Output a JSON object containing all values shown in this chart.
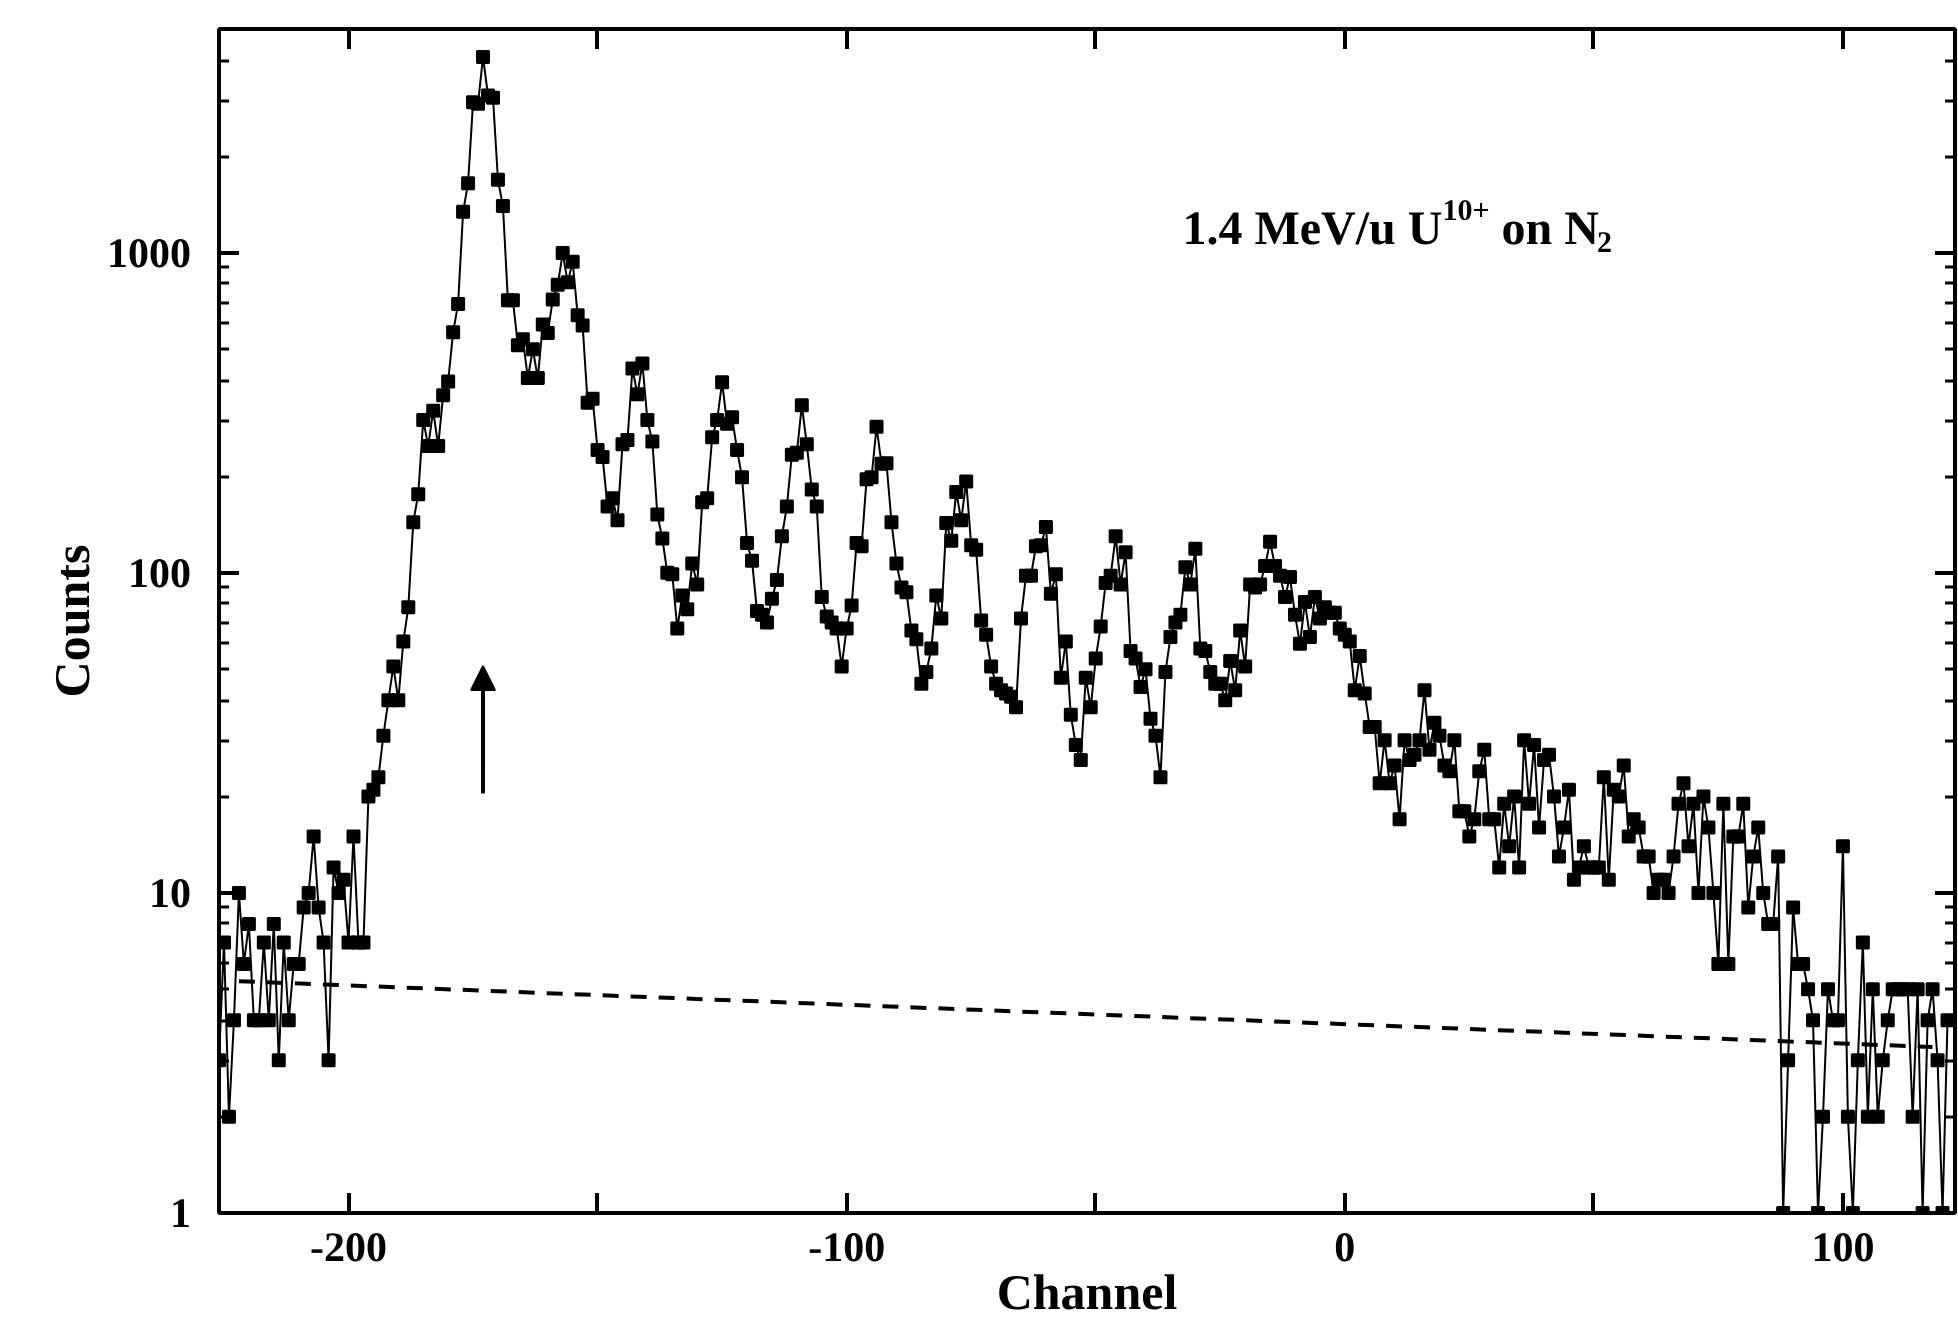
{
  "chart_data": {
    "type": "line",
    "xlabel": "Channel",
    "ylabel": "Counts",
    "annotations": [
      "1.4 MeV/u U$^{10+}$ on N$_{2}$"
    ],
    "log": "y",
    "grid": false,
    "xlim": [
      -226,
      122.5
    ],
    "ylim": [
      1,
      5000
    ],
    "xticks": [
      -200,
      -100,
      0,
      100
    ],
    "yticks": [
      1,
      10,
      100,
      1000
    ],
    "series": [
      {
        "color": "#000000",
        "marker": "square",
        "line_style": "solid",
        "x": [
          -226,
          -225,
          -224,
          -223,
          -222,
          -221,
          -220,
          -219,
          -218,
          -217,
          -216,
          -215,
          -214,
          -213,
          -212,
          -211,
          -210,
          -209,
          -208,
          -207,
          -206,
          -205,
          -204,
          -203,
          -202,
          -201,
          -200,
          -199,
          -198,
          -197,
          -196,
          -195,
          -194,
          -193,
          -192,
          -191,
          -190,
          -189,
          -188,
          -187,
          -186,
          -185,
          -184,
          -183,
          -182,
          -181,
          -180,
          -179,
          -178,
          -177,
          -176,
          -175,
          -174,
          -173,
          -172,
          -171,
          -170,
          -169,
          -168,
          -167,
          -166,
          -165,
          -164,
          -163,
          -162,
          -161,
          -160,
          -159,
          -158,
          -157,
          -156,
          -155,
          -154,
          -153,
          -152,
          -151,
          -150,
          -149,
          -148,
          -147,
          -146,
          -145,
          -144,
          -143,
          -142,
          -141,
          -140,
          -139,
          -138,
          -137,
          -136,
          -135,
          -134,
          -133,
          -132,
          -131,
          -130,
          -129,
          -128,
          -127,
          -126,
          -125,
          -124,
          -123,
          -122,
          -121,
          -120,
          -119,
          -118,
          -117,
          -116,
          -115,
          -114,
          -113,
          -112,
          -111,
          -110,
          -109,
          -108,
          -107,
          -106,
          -105,
          -104,
          -103,
          -102,
          -101,
          -100,
          -99,
          -98,
          -97,
          -96,
          -95,
          -94,
          -93,
          -92,
          -91,
          -90,
          -89,
          -88,
          -87,
          -86,
          -85,
          -84,
          -83,
          -82,
          -81,
          -80,
          -79,
          -78,
          -77,
          -76,
          -75,
          -74,
          -73,
          -72,
          -71,
          -70,
          -69,
          -68,
          -67,
          -66,
          -65,
          -64,
          -63,
          -62,
          -61,
          -60,
          -59,
          -58,
          -57,
          -56,
          -55,
          -54,
          -53,
          -52,
          -51,
          -50,
          -49,
          -48,
          -47,
          -46,
          -45,
          -44,
          -43,
          -42,
          -41,
          -40,
          -39,
          -38,
          -37,
          -36,
          -35,
          -34,
          -33,
          -32,
          -31,
          -30,
          -29,
          -28,
          -27,
          -26,
          -25,
          -24,
          -23,
          -22,
          -21,
          -20,
          -19,
          -18,
          -17,
          -16,
          -15,
          -14,
          -13,
          -12,
          -11,
          -10,
          -9,
          -8,
          -7,
          -6,
          -5,
          -4,
          -3,
          -2,
          -1,
          0,
          1,
          2,
          3,
          4,
          5,
          6,
          7,
          8,
          9,
          10,
          11,
          12,
          13,
          14,
          15,
          16,
          17,
          18,
          19,
          20,
          21,
          22,
          23,
          24,
          25,
          26,
          27,
          28,
          29,
          30,
          31,
          32,
          33,
          34,
          35,
          36,
          37,
          38,
          39,
          40,
          41,
          42,
          43,
          44,
          45,
          46,
          47,
          48,
          49,
          50,
          51,
          52,
          53,
          54,
          55,
          56,
          57,
          58,
          59,
          60,
          61,
          62,
          63,
          64,
          65,
          66,
          67,
          68,
          69,
          70,
          71,
          72,
          73,
          74,
          75,
          76,
          77,
          78,
          79,
          80,
          81,
          82,
          83,
          84,
          85,
          86,
          87,
          88,
          89,
          90,
          91,
          92,
          93,
          94,
          95,
          96,
          97,
          98,
          99,
          100,
          101,
          102,
          103,
          104,
          105,
          106,
          107,
          108,
          109,
          110,
          111,
          112,
          113,
          114,
          115,
          116,
          117,
          118,
          119,
          120,
          121
        ],
        "values": [
          3,
          7,
          2,
          4,
          10,
          6,
          8,
          4,
          4,
          7,
          4,
          8,
          3,
          7,
          4,
          6,
          6,
          9,
          10,
          15,
          9,
          7,
          3,
          12,
          10,
          11,
          7,
          15,
          7,
          7,
          20,
          21,
          23,
          31,
          40,
          51,
          40,
          61,
          78,
          144,
          176,
          300,
          249,
          321,
          249,
          359,
          396,
          564,
          692,
          1342,
          1648,
          2950,
          2920,
          4090,
          3100,
          3050,
          1690,
          1400,
          710,
          710,
          514,
          537,
          406,
          499,
          406,
          597,
          561,
          714,
          794,
          998,
          808,
          937,
          638,
          593,
          340,
          350,
          242,
          230,
          161,
          171,
          146,
          252,
          260,
          435,
          361,
          451,
          300,
          257,
          152,
          128,
          100,
          99,
          67,
          85,
          77,
          107,
          92,
          166,
          171,
          265,
          300,
          394,
          292,
          306,
          242,
          199,
          124,
          109,
          76,
          74,
          70,
          83,
          95,
          130,
          161,
          234,
          237,
          334,
          252,
          182,
          161,
          84,
          73,
          70,
          67,
          51,
          67,
          79,
          124,
          121,
          196,
          199,
          286,
          219,
          220,
          144,
          107,
          90,
          87,
          66,
          62,
          45,
          49,
          58,
          85,
          72,
          143,
          126,
          179,
          146,
          193,
          122,
          118,
          71,
          64,
          51,
          45,
          43,
          42,
          41,
          38,
          72,
          98,
          98,
          121,
          122,
          139,
          86,
          99,
          47,
          61,
          36,
          29,
          26,
          47,
          38,
          54,
          68,
          93,
          98,
          130,
          92,
          116,
          57,
          54,
          44,
          50,
          35,
          31,
          23,
          49,
          63,
          70,
          74,
          104,
          92,
          119,
          58,
          57,
          49,
          45,
          45,
          40,
          53,
          43,
          66,
          51,
          92,
          90,
          92,
          105,
          125,
          105,
          98,
          84,
          97,
          74,
          60,
          81,
          63,
          84,
          72,
          78,
          75,
          75,
          67,
          64,
          61,
          43,
          55,
          42,
          33,
          33,
          22,
          30,
          22,
          25,
          17,
          30,
          26,
          27,
          30,
          43,
          28,
          34,
          31,
          25,
          24,
          30,
          18,
          18,
          15,
          17,
          24,
          28,
          17,
          17,
          12,
          19,
          14,
          20,
          12,
          30,
          19,
          29,
          16,
          26,
          27,
          20,
          13,
          16,
          21,
          11,
          12,
          14,
          12,
          12,
          12,
          23,
          11,
          21,
          20,
          25,
          15,
          17,
          16,
          13,
          13,
          10,
          11,
          11,
          10,
          13,
          19,
          22,
          14,
          19,
          10,
          20,
          16,
          10,
          6,
          19,
          6,
          15,
          15,
          19,
          9,
          13,
          16,
          10,
          8,
          8,
          13,
          1,
          3,
          9,
          6,
          6,
          5,
          4,
          1,
          2,
          5,
          4,
          4,
          14,
          2,
          1,
          3,
          7,
          2,
          5,
          2,
          3,
          4,
          5,
          5,
          5,
          5,
          2,
          5,
          1,
          4,
          5,
          3,
          1,
          4
        ]
      },
      {
        "color": "#000000",
        "marker": "none",
        "line_style": "dashed",
        "x": [
          -222,
          118
        ],
        "values": [
          5.3,
          3.3
        ]
      }
    ]
  }
}
